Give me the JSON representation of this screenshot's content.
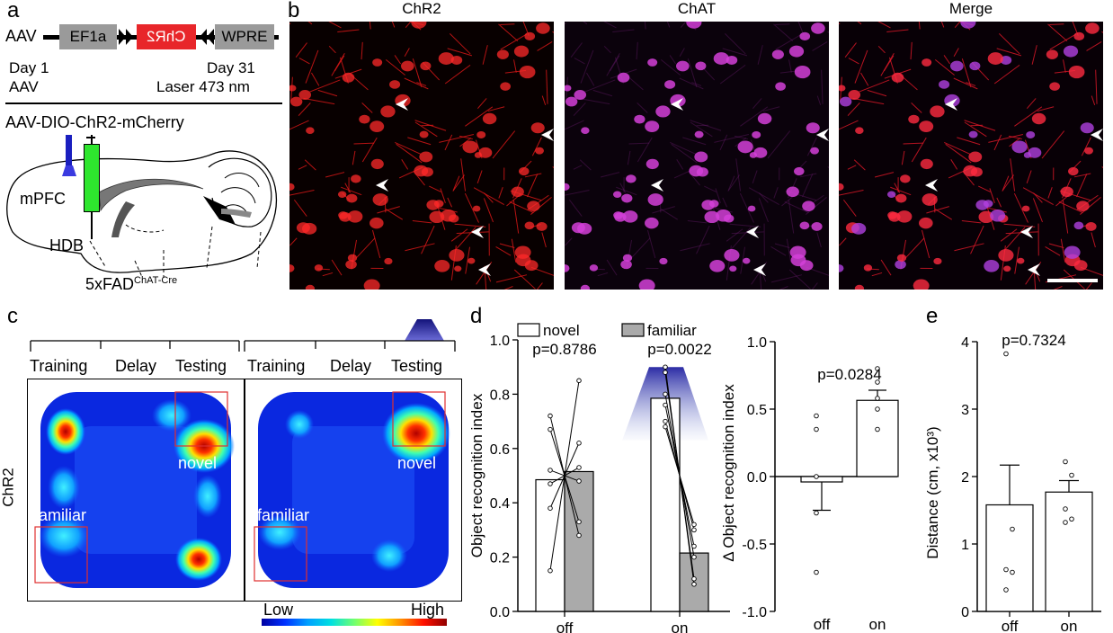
{
  "panels": {
    "a": "a",
    "b": "b",
    "c": "c",
    "d": "d",
    "e": "e"
  },
  "panel_a": {
    "construct_start": "AAV",
    "promoter": "EF1a",
    "gene": "ChR2",
    "element_end": "WPRE",
    "timeline": {
      "day1": "Day 1",
      "day1_sub": "AAV",
      "day31": "Day 31",
      "day31_sub": "Laser 473 nm"
    },
    "virus": "AAV-DIO-ChR2-mCherry",
    "region_mpfc": "mPFC",
    "region_hdb": "HDB",
    "mouse_line": "5xFAD",
    "mouse_line_sup": "ChAT-Cre"
  },
  "panel_b": {
    "titles": [
      "ChR2",
      "ChAT",
      "Merge"
    ],
    "colors": {
      "chr2": "#ff2020",
      "chat": "#d23bd6"
    }
  },
  "panel_c": {
    "phases": [
      "Training",
      "Delay",
      "Testing"
    ],
    "row_label": "ChR2",
    "novel": "novel",
    "familiar": "familiar",
    "colorbar_low": "Low",
    "colorbar_high": "High"
  },
  "panel_d": {
    "legend": [
      "novel",
      "familiar"
    ],
    "left_chart": {
      "ylabel": "Object recognition index",
      "yticks": [
        "0.0",
        "0.2",
        "0.4",
        "0.6",
        "0.8",
        "1.0"
      ],
      "ylim": [
        0,
        1.0
      ],
      "categories": [
        "off",
        "on"
      ],
      "pvalues": [
        "p=0.8786",
        "p=0.0022"
      ],
      "novel": [
        0.485,
        0.785
      ],
      "familiar": [
        0.515,
        0.215
      ],
      "pairs_off": [
        [
          0.72,
          0.28
        ],
        [
          0.67,
          0.33
        ],
        [
          0.47,
          0.53
        ],
        [
          0.38,
          0.62
        ],
        [
          0.15,
          0.85
        ],
        [
          0.52,
          0.48
        ]
      ],
      "pairs_on": [
        [
          0.9,
          0.1
        ],
        [
          0.88,
          0.12
        ],
        [
          0.8,
          0.2
        ],
        [
          0.76,
          0.24
        ],
        [
          0.7,
          0.3
        ],
        [
          0.68,
          0.32
        ]
      ]
    },
    "right_chart": {
      "ylabel": "Δ Object recognition index",
      "yticks": [
        "1.0",
        "0.5",
        "0.0",
        "-0.5",
        "-1.0"
      ],
      "ylim": [
        -1.0,
        1.0
      ],
      "categories": [
        "off",
        "on"
      ],
      "pvalue": "p=0.0284",
      "means": [
        -0.04,
        0.565
      ],
      "sem": [
        0.21,
        0.075
      ],
      "points_off": [
        0.45,
        0.35,
        0.0,
        -0.27,
        -0.71
      ],
      "points_on": [
        0.8,
        0.7,
        0.58,
        0.5,
        0.35
      ]
    }
  },
  "panel_e": {
    "ylabel": "Distance (cm, x10³)",
    "yticks": [
      "0",
      "1",
      "2",
      "3",
      "4"
    ],
    "ylim": [
      0,
      4
    ],
    "categories": [
      "off",
      "on"
    ],
    "pvalue": "p=0.7324",
    "means": [
      1.58,
      1.77
    ],
    "sem": [
      0.59,
      0.17
    ],
    "points_off": [
      3.82,
      1.22,
      0.62,
      0.58,
      0.32
    ],
    "points_on": [
      2.22,
      2.02,
      1.52,
      1.37,
      1.32
    ]
  }
}
